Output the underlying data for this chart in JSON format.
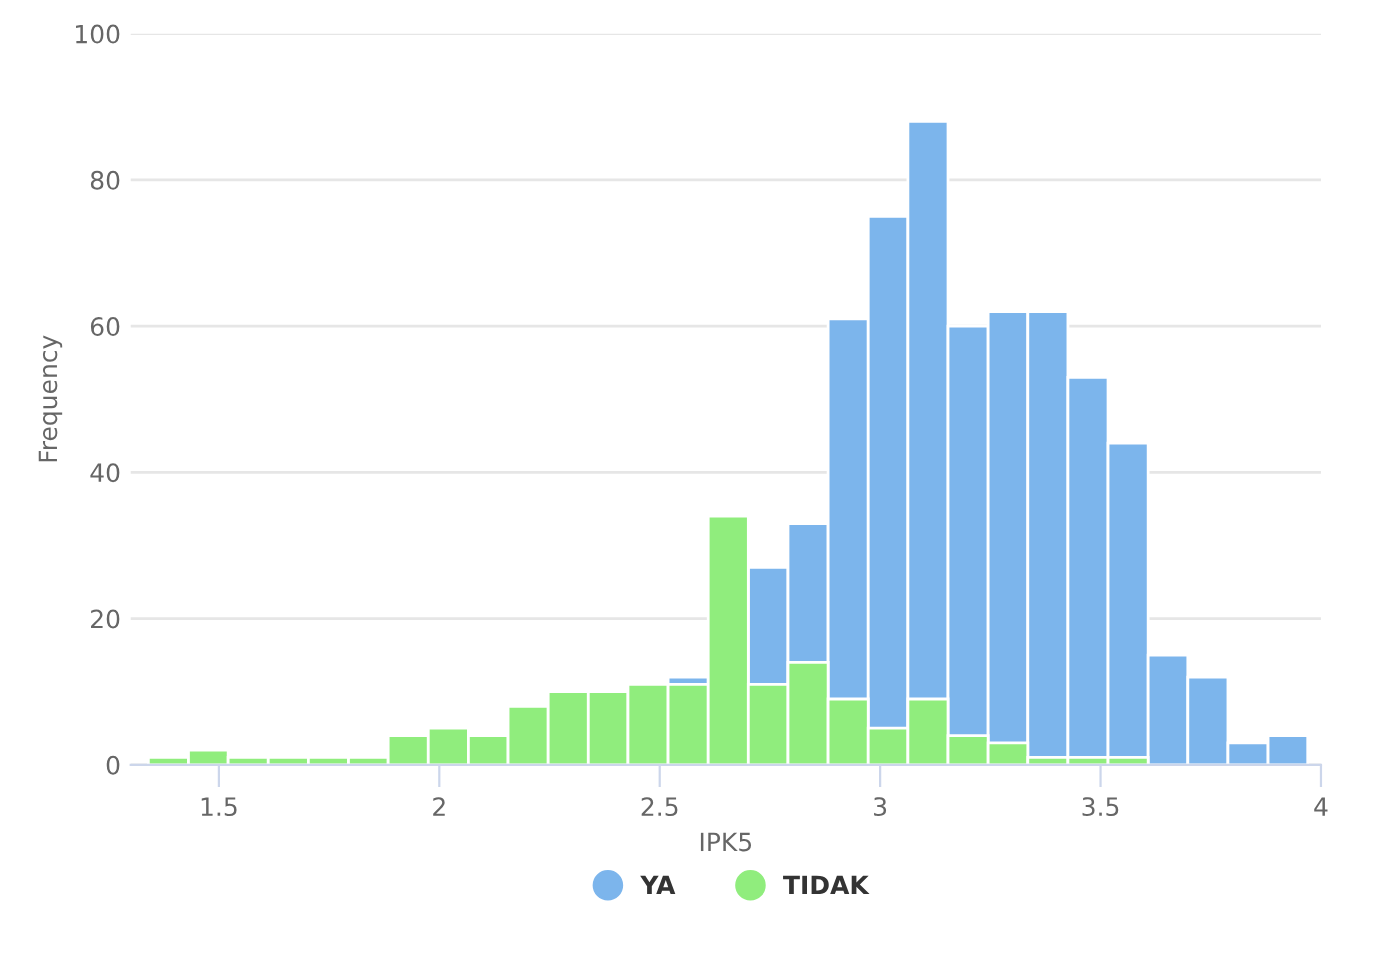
{
  "chart_data": {
    "type": "histogram",
    "xlabel": "IPK5",
    "ylabel": "Frequency",
    "bins": [
      1.34,
      1.431,
      1.521,
      1.612,
      1.703,
      1.794,
      1.884,
      1.975,
      2.066,
      2.156,
      2.247,
      2.338,
      2.428,
      2.519,
      2.61,
      2.701,
      2.791,
      2.882,
      2.973,
      3.063,
      3.154,
      3.245,
      3.335,
      3.426,
      3.517,
      3.608,
      3.698,
      3.789,
      3.88,
      3.97
    ],
    "series": [
      {
        "name": "YA",
        "color": "#7cb5ec",
        "values": [
          0,
          0,
          0,
          0,
          0,
          0,
          0,
          0,
          0,
          0,
          0,
          0,
          0,
          12,
          null,
          27,
          33,
          61,
          75,
          88,
          60,
          62,
          62,
          53,
          44,
          15,
          12,
          3,
          4
        ]
      },
      {
        "name": "TIDAK",
        "color": "#90ed7d",
        "values": [
          1,
          2,
          1,
          1,
          1,
          1,
          4,
          5,
          4,
          8,
          10,
          10,
          11,
          11,
          34,
          11,
          14,
          9,
          5,
          9,
          4,
          3,
          1,
          1,
          1,
          0,
          0,
          0,
          0
        ]
      }
    ],
    "xlim": [
      1.3,
      4
    ],
    "xticks": [
      1.5,
      2,
      2.5,
      3,
      3.5,
      4
    ],
    "ylim": [
      0,
      100
    ],
    "yticks": [
      0,
      20,
      40,
      60,
      80,
      100
    ],
    "grid": "y",
    "legend": "bottom"
  }
}
